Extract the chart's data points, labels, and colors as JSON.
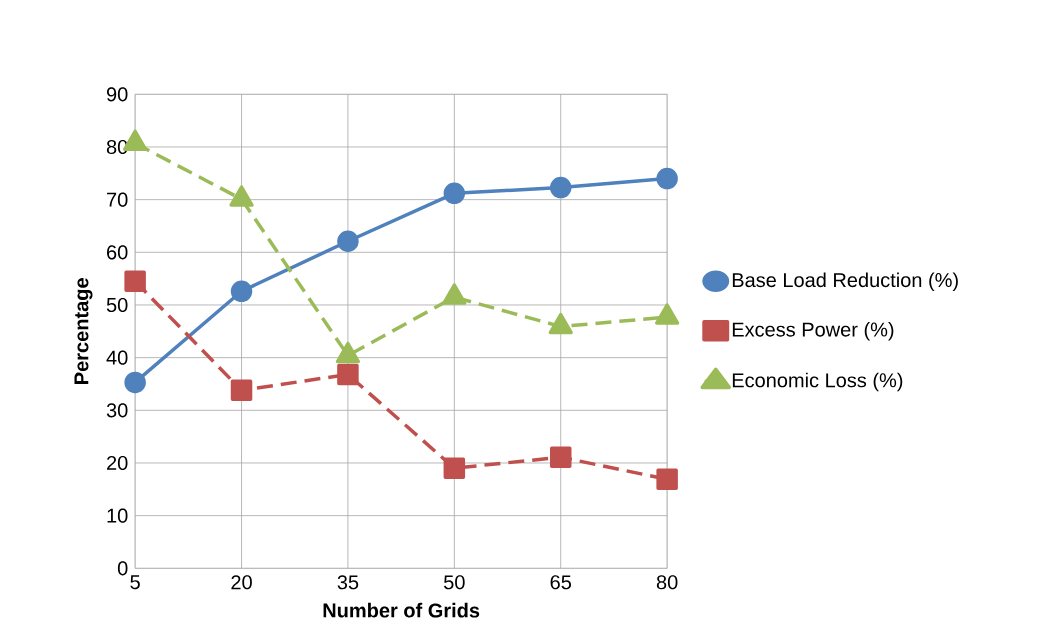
{
  "chart_data": {
    "type": "line",
    "xlabel": "Number of Grids",
    "ylabel": "Percentage",
    "categories": [
      "5",
      "20",
      "35",
      "50",
      "65",
      "80"
    ],
    "series": [
      {
        "name": "Base Load Reduction (%)",
        "color": "#4f81bd",
        "marker": "circle",
        "line_style": "solid",
        "values": [
          35.3,
          52.6,
          62.1,
          71.2,
          72.3,
          74.0
        ]
      },
      {
        "name": "Excess Power (%)",
        "color": "#c0504d",
        "marker": "square",
        "line_style": "dashed",
        "values": [
          54.5,
          33.8,
          36.8,
          19.0,
          21.1,
          16.9
        ]
      },
      {
        "name": "Economic Loss (%)",
        "color": "#9bbb59",
        "marker": "triangle",
        "line_style": "dashed",
        "values": [
          80.7,
          70.1,
          40.4,
          51.5,
          45.9,
          47.7
        ]
      }
    ],
    "ylim": [
      0,
      90
    ],
    "yticks": [
      0,
      10,
      20,
      30,
      40,
      50,
      60,
      70,
      80,
      90
    ],
    "grid": true,
    "legend": "right"
  }
}
